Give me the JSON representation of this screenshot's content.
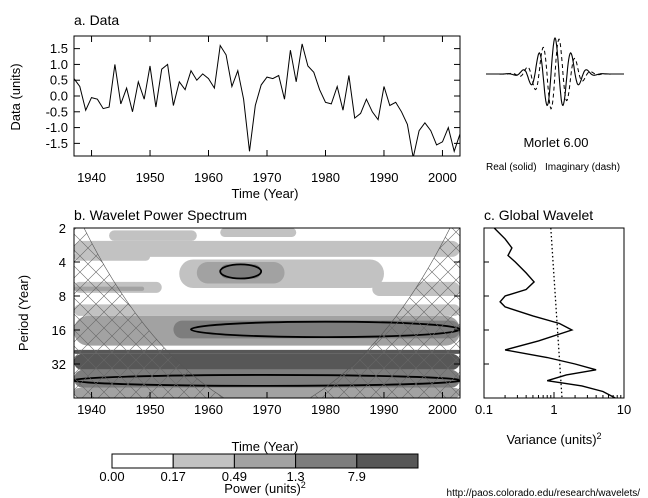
{
  "chart_data": [
    {
      "type": "line",
      "title": "a. Data",
      "xlabel": "Time (Year)",
      "ylabel": "Data (units)",
      "xlim": [
        1937,
        2003
      ],
      "ylim": [
        -1.9,
        1.9
      ],
      "xticks": [
        "1940",
        "1950",
        "1960",
        "1970",
        "1980",
        "1990",
        "2000"
      ],
      "yticks": [
        "1.5",
        "1.0",
        "0.5",
        "0.0",
        "-0.5",
        "-1.0",
        "-1.5"
      ],
      "x": [
        1937,
        1938,
        1939,
        1940,
        1941,
        1942,
        1943,
        1944,
        1945,
        1946,
        1947,
        1948,
        1949,
        1950,
        1951,
        1952,
        1953,
        1954,
        1955,
        1956,
        1957,
        1958,
        1959,
        1960,
        1961,
        1962,
        1963,
        1964,
        1965,
        1966,
        1967,
        1968,
        1969,
        1970,
        1971,
        1972,
        1973,
        1974,
        1975,
        1976,
        1977,
        1978,
        1979,
        1980,
        1981,
        1982,
        1983,
        1984,
        1985,
        1986,
        1987,
        1988,
        1989,
        1990,
        1991,
        1992,
        1993,
        1994,
        1995,
        1996,
        1997,
        1998,
        1999,
        2000,
        2001,
        2002,
        2003
      ],
      "values": [
        0.55,
        0.3,
        -0.45,
        -0.05,
        -0.1,
        -0.4,
        -0.35,
        1.0,
        -0.25,
        0.25,
        -0.5,
        0.45,
        -0.1,
        0.95,
        -0.35,
        0.85,
        1.0,
        -0.3,
        0.45,
        0.2,
        0.8,
        0.5,
        0.7,
        0.55,
        0.25,
        1.6,
        1.3,
        0.3,
        0.8,
        -0.1,
        -1.75,
        -0.3,
        0.35,
        0.6,
        0.55,
        0.65,
        -0.1,
        1.45,
        0.45,
        1.65,
        0.95,
        0.75,
        0.2,
        -0.2,
        -0.25,
        0.3,
        -0.45,
        0.65,
        -0.7,
        -0.55,
        -0.1,
        -0.5,
        -0.75,
        0.3,
        -0.3,
        -0.2,
        -0.5,
        -0.9,
        -1.95,
        -1.1,
        -0.85,
        -1.1,
        -1.55,
        -1.45,
        -1.0,
        -1.75,
        -1.2
      ]
    },
    {
      "type": "line",
      "title": "Morlet 6.00",
      "caption_real": "Real (solid)",
      "caption_imag": "Imaginary (dash)",
      "omega0": 6.0,
      "series": [
        {
          "part": "real",
          "style": "solid"
        },
        {
          "part": "imaginary",
          "style": "dash"
        }
      ]
    },
    {
      "type": "heatmap",
      "title": "b. Wavelet Power Spectrum",
      "xlabel": "Time (Year)",
      "ylabel": "Period (Year)",
      "xlim": [
        1937,
        2003
      ],
      "period_range": [
        2,
        64
      ],
      "yscale": "log2",
      "xticks": [
        "1940",
        "1950",
        "1960",
        "1970",
        "1980",
        "1990",
        "2000"
      ],
      "yticks": [
        "2",
        "4",
        "8",
        "16",
        "32"
      ],
      "contour_levels": [
        0,
        0.17,
        0.49,
        1.3,
        7.9
      ],
      "colors": [
        "#ffffff",
        "#c2c2c2",
        "#a2a2a2",
        "#7d7d7d",
        "#575757"
      ],
      "significance_regions": [
        {
          "x": [
            1962,
            1969
          ],
          "period": [
            4.2,
            5.6
          ]
        },
        {
          "x": [
            1957,
            2003
          ],
          "period": [
            13.5,
            18.5
          ]
        },
        {
          "x": [
            1937,
            2003
          ],
          "period": [
            40,
            50
          ]
        }
      ]
    },
    {
      "type": "line",
      "title": "c. Global Wavelet",
      "xlabel": "Variance (units)",
      "xlabel_sup": "2",
      "xscale": "log",
      "xlim": [
        0.1,
        10
      ],
      "xticks": [
        "0.1",
        "1",
        "10"
      ],
      "period_range": [
        2,
        64
      ],
      "series": [
        {
          "style": "solid",
          "period": [
            2,
            2.5,
            3,
            3.5,
            4,
            5,
            6,
            7,
            8,
            9,
            10,
            12,
            14,
            16,
            20,
            24,
            28,
            32,
            36,
            40,
            45,
            50,
            56,
            64
          ],
          "variance": [
            0.14,
            0.2,
            0.25,
            0.22,
            0.28,
            0.4,
            0.52,
            0.4,
            0.2,
            0.17,
            0.2,
            0.5,
            1.2,
            1.8,
            0.6,
            0.2,
            0.8,
            2.0,
            4.0,
            1.5,
            0.8,
            2.5,
            5.0,
            7.5
          ]
        },
        {
          "style": "dotted",
          "period": [
            2,
            64
          ],
          "variance": [
            0.9,
            1.3
          ]
        }
      ]
    },
    {
      "type": "table",
      "title": "colorbar",
      "label": "Power (units)",
      "label_sup": "2",
      "ticks": [
        "0.00",
        "0.17",
        "0.49",
        "1.3",
        "7.9"
      ]
    }
  ],
  "footer": {
    "url": "http://paos.colorado.edu/research/wavelets/"
  }
}
